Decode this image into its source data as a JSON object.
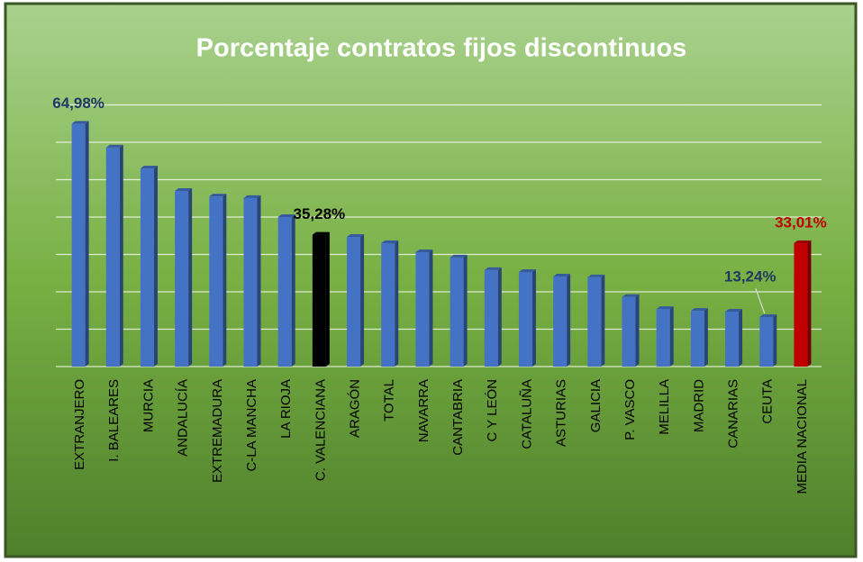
{
  "chart_data": {
    "type": "bar",
    "title": "Porcentaje contratos fijos discontinuos",
    "categories": [
      "EXTRANJERO",
      "I. BALEARES",
      "MURCIA",
      "ANDALUCÍA",
      "EXTREMADURA",
      "C-LA MANCHA",
      "LA RIOJA",
      "C. VALENCIANA",
      "ARAGÓN",
      "TOTAL",
      "NAVARRA",
      "CANTABRIA",
      "C Y LEÓN",
      "CATALUÑA",
      "ASTURIAS",
      "GALICIA",
      "P. VASCO",
      "MELILLA",
      "MADRID",
      "CANARIAS",
      "CEUTA",
      "MEDIA NACIONAL"
    ],
    "values": [
      64.98,
      58.6,
      53.0,
      47.0,
      45.5,
      45.1,
      40.0,
      35.28,
      34.7,
      33.0,
      30.6,
      29.2,
      25.8,
      25.3,
      24.1,
      23.9,
      18.6,
      15.4,
      14.9,
      14.7,
      13.24,
      33.01
    ],
    "value_labels": [
      "64,98%",
      null,
      null,
      null,
      null,
      null,
      null,
      "35,28%",
      null,
      null,
      null,
      null,
      null,
      null,
      null,
      null,
      null,
      null,
      null,
      null,
      "13,24%",
      "33,01%"
    ],
    "colors": [
      "#4472c4",
      "#4472c4",
      "#4472c4",
      "#4472c4",
      "#4472c4",
      "#4472c4",
      "#4472c4",
      "#000000",
      "#4472c4",
      "#4472c4",
      "#4472c4",
      "#4472c4",
      "#4472c4",
      "#4472c4",
      "#4472c4",
      "#4472c4",
      "#4472c4",
      "#4472c4",
      "#4472c4",
      "#4472c4",
      "#4472c4",
      "#c00000"
    ],
    "value_label_colors": [
      "#1f3864",
      null,
      null,
      null,
      null,
      null,
      null,
      "#000000",
      null,
      null,
      null,
      null,
      null,
      null,
      null,
      null,
      null,
      null,
      null,
      null,
      "#1f3864",
      "#c00000"
    ],
    "ylim": [
      0,
      70
    ],
    "yticks": [
      0,
      10,
      20,
      30,
      40,
      50,
      60,
      70
    ],
    "grid": true
  }
}
